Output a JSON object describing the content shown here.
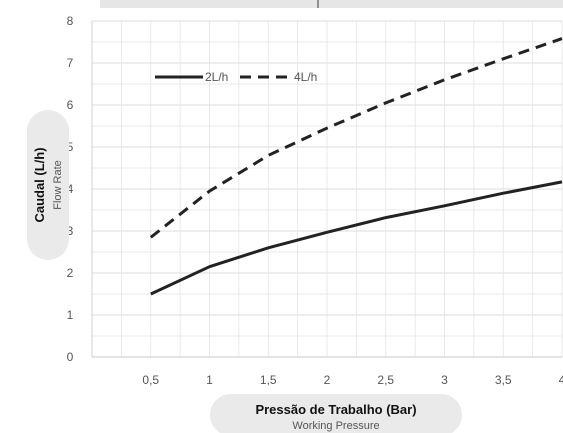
{
  "chart_data": {
    "type": "line",
    "x": [
      0.5,
      1,
      1.5,
      2,
      2.5,
      3,
      3.5,
      4
    ],
    "xticks": [
      "0,5",
      "1",
      "1,5",
      "2",
      "2,5",
      "3",
      "3,5",
      "4"
    ],
    "yticks": [
      "0",
      "1",
      "2",
      "3",
      "4",
      "5",
      "6",
      "7",
      "8"
    ],
    "xlim": [
      0,
      4
    ],
    "ylim": [
      0,
      8
    ],
    "grid": true,
    "legend_position": "top-left",
    "series": [
      {
        "name": "2L/h",
        "style": "solid",
        "values": [
          1.5,
          2.15,
          2.6,
          2.97,
          3.32,
          3.6,
          3.9,
          4.17
        ]
      },
      {
        "name": "4L/h",
        "style": "dashed",
        "values": [
          2.85,
          3.95,
          4.8,
          5.45,
          6.05,
          6.6,
          7.1,
          7.58
        ]
      }
    ],
    "ylabel": "Caudal (L/h)",
    "ylabel_sub": "Flow Rate",
    "xlabel": "Pressão de Trabalho (Bar)",
    "xlabel_sub": "Working Pressure"
  },
  "colors": {
    "line": "#222222",
    "grid": "#e3e3e3",
    "label_bg": "#eaeaea",
    "top_bar": "#e6e6e6"
  }
}
